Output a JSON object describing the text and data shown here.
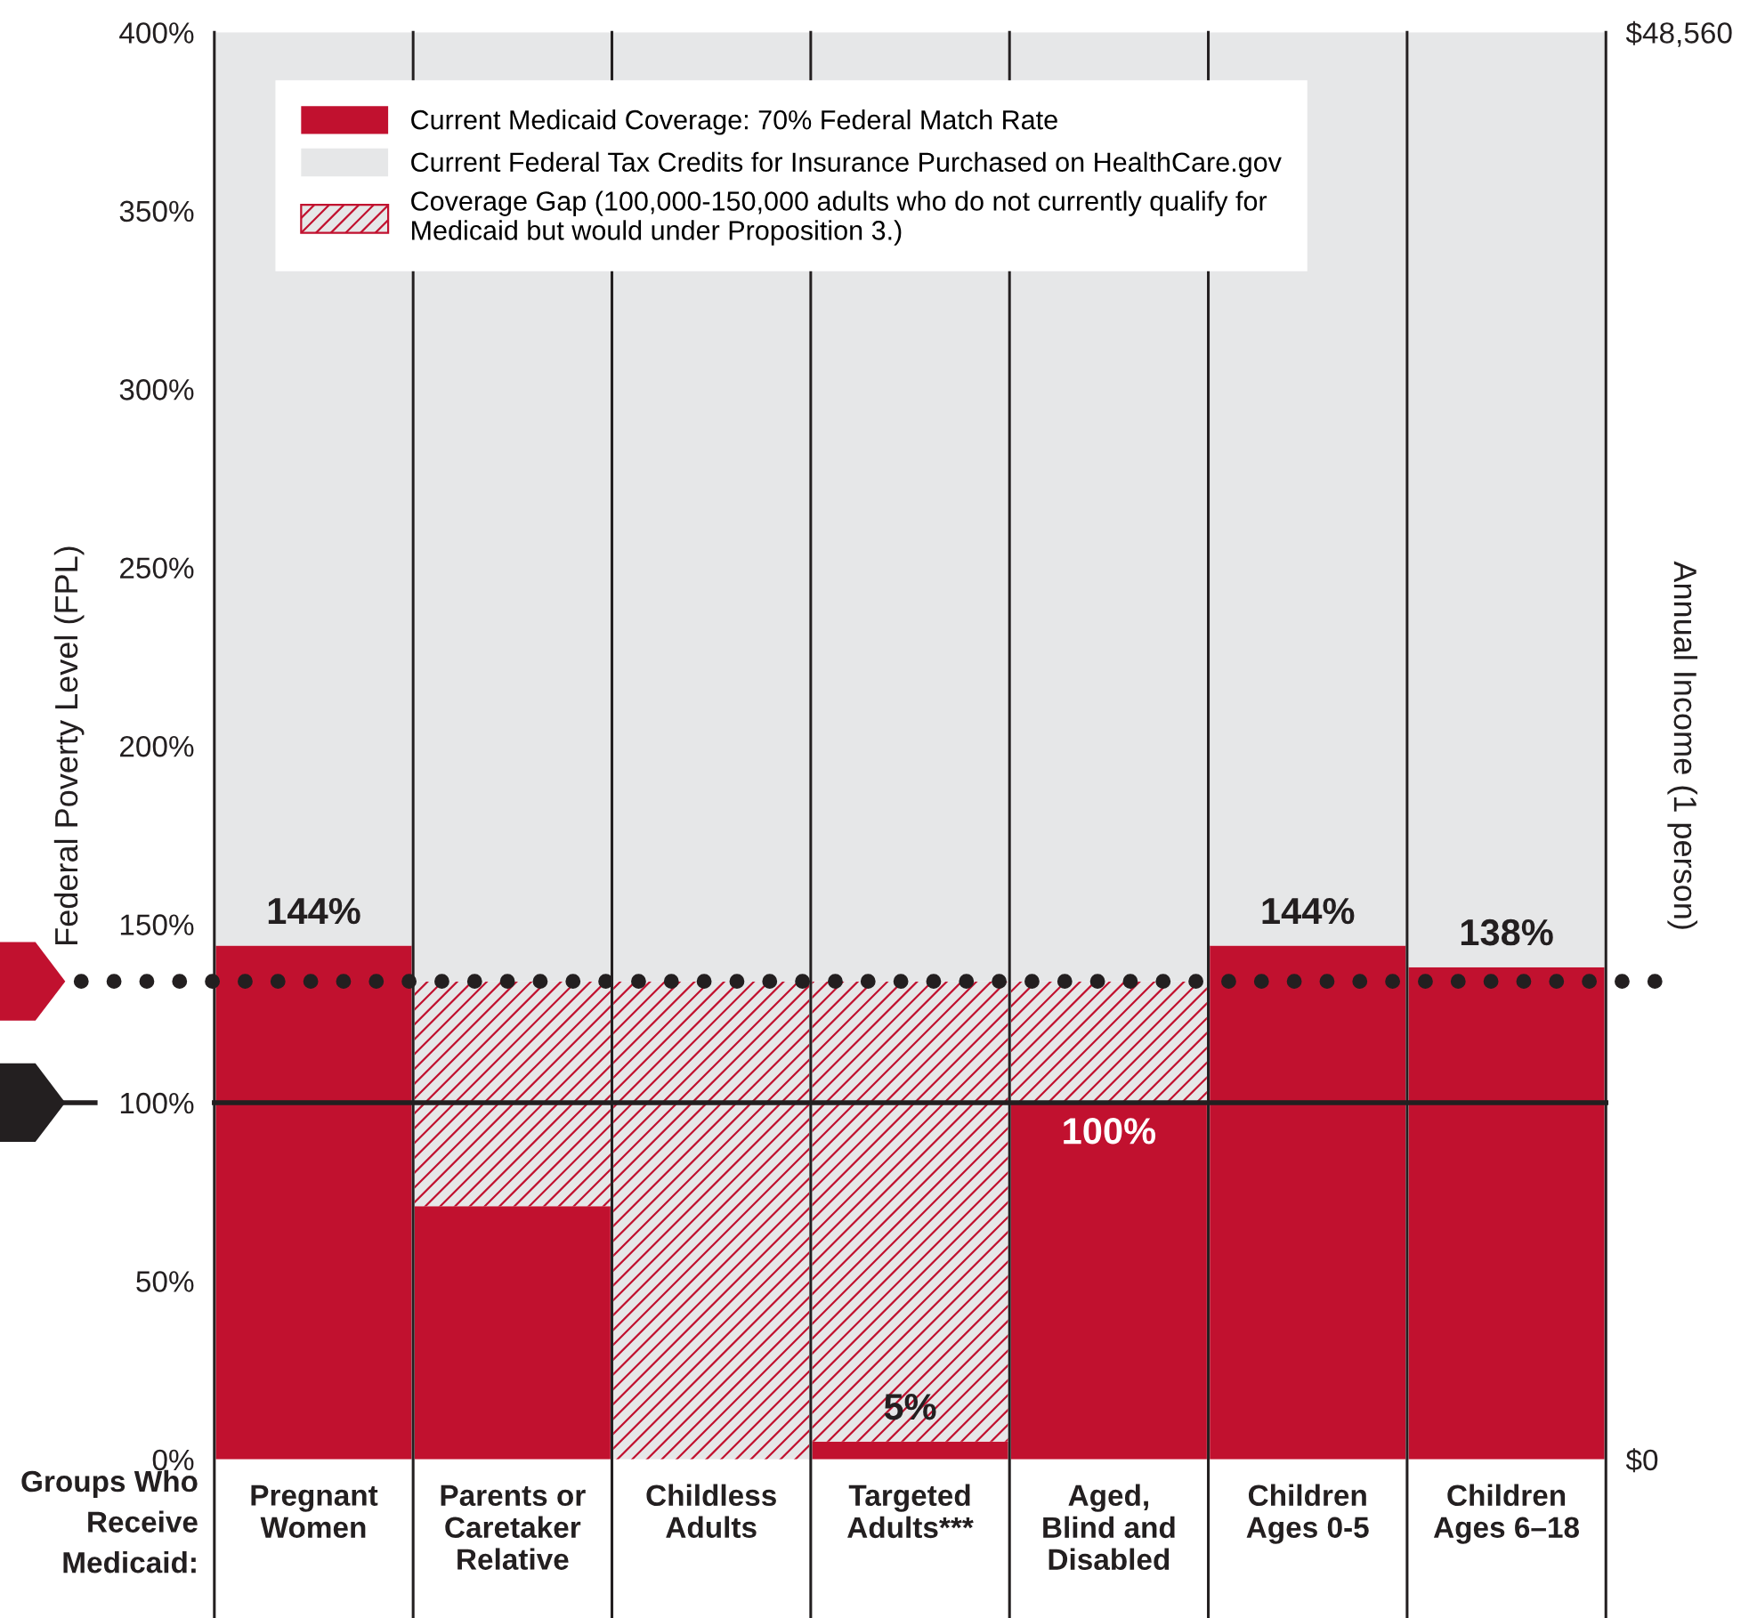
{
  "chart_data": {
    "type": "bar",
    "stacked": true,
    "categories": [
      "Pregnant\nWomen",
      "Parents or\nCaretaker\nRelative",
      "Childless\nAdults",
      "Targeted\nAdults***",
      "Aged,\nBlind and\nDisabled",
      "Children\nAges 0-5",
      "Children\nAges 6–18"
    ],
    "series": [
      {
        "name": "Current Medicaid Coverage: 70% Federal Match Rate",
        "color": "#c1112f",
        "values": [
          144,
          71,
          0,
          5,
          100,
          144,
          138
        ],
        "value_labels": [
          "144%",
          null,
          null,
          "5%",
          "100%",
          "144%",
          "138%"
        ]
      },
      {
        "name": "Coverage Gap (100,000-150,000 adults who do not currently qualify for\nMedicaid but would under Proposition 3.)",
        "color": "#c1112f",
        "values": [
          0,
          63,
          134,
          129,
          34,
          0,
          0
        ]
      },
      {
        "name": "Current Federal Tax Credits for Insurance Purchased on HealthCare.gov",
        "color": "#e6e7e8",
        "values": [
          256,
          266,
          266,
          266,
          266,
          256,
          262
        ]
      }
    ],
    "ylabel": "Federal Poverty Level (FPL)",
    "y2label": "Annual Income (1 person)",
    "ylim": [
      0,
      400
    ],
    "yticks": [
      {
        "value": 0,
        "label": "0%"
      },
      {
        "value": 50,
        "label": "50%"
      },
      {
        "value": 100,
        "label": "100%"
      },
      {
        "value": 150,
        "label": "150%"
      },
      {
        "value": 200,
        "label": "200%"
      },
      {
        "value": 250,
        "label": "250%"
      },
      {
        "value": 300,
        "label": "300%"
      },
      {
        "value": 350,
        "label": "350%"
      },
      {
        "value": 400,
        "label": "400%"
      }
    ],
    "y2lim": [
      0,
      48560
    ],
    "y2ticks": [
      {
        "value": 0,
        "label": "$0"
      },
      {
        "value": 48560,
        "label": "$48,560"
      }
    ],
    "ref_lines": [
      {
        "axis": "y",
        "value": 134,
        "line_style": "dotted",
        "color": "#231f20"
      },
      {
        "axis": "y",
        "value": 100,
        "line_style": "solid",
        "color": "#231f20"
      }
    ],
    "annotations": [
      "Groups Who\nReceive\nMedicaid:"
    ],
    "legend": "top left",
    "grid": false
  }
}
